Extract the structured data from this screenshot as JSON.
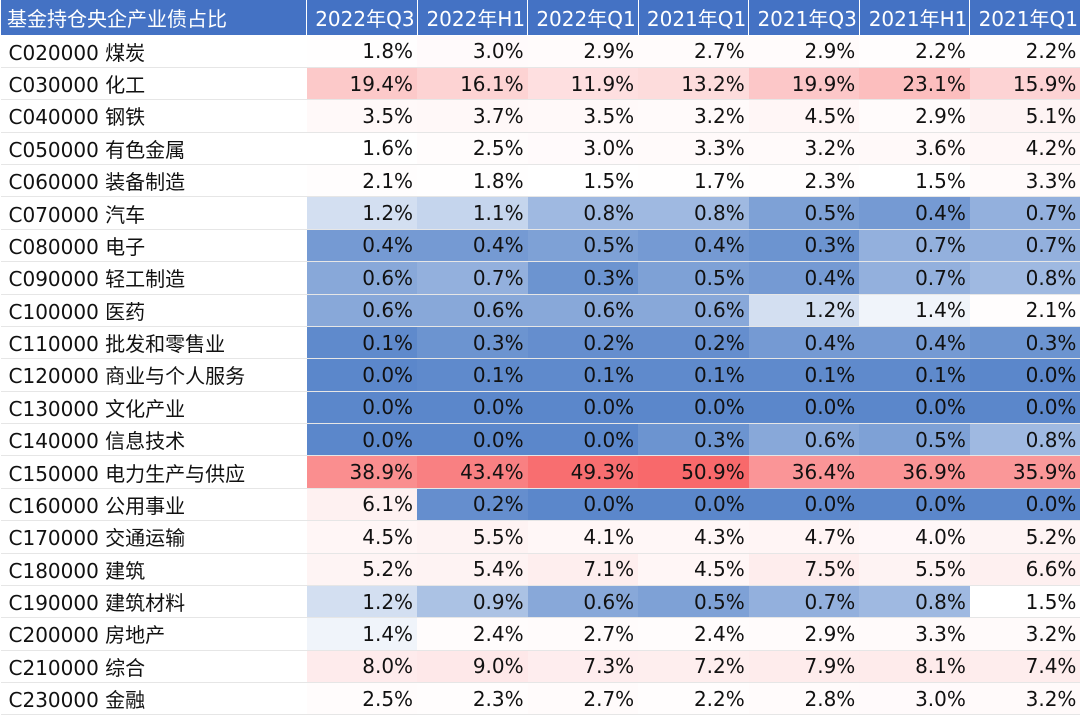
{
  "header": {
    "title": "基金持仓央企产业债占比",
    "periods": [
      "2022年Q3",
      "2022年H1",
      "2022年Q1",
      "2021年Q1",
      "2021年Q3",
      "2021年H1",
      "2021年Q1"
    ]
  },
  "rows": [
    {
      "name": "C020000 煤炭",
      "values": [
        1.8,
        3.0,
        2.9,
        2.7,
        2.9,
        2.2,
        2.2
      ]
    },
    {
      "name": "C030000 化工",
      "values": [
        19.4,
        16.1,
        11.9,
        13.2,
        19.9,
        23.1,
        15.9
      ]
    },
    {
      "name": "C040000 钢铁",
      "values": [
        3.5,
        3.7,
        3.5,
        3.2,
        4.5,
        2.9,
        5.1
      ]
    },
    {
      "name": "C050000 有色金属",
      "values": [
        1.6,
        2.5,
        3.0,
        3.3,
        3.2,
        3.6,
        4.2
      ]
    },
    {
      "name": "C060000 装备制造",
      "values": [
        2.1,
        1.8,
        1.5,
        1.7,
        2.3,
        1.5,
        3.3
      ]
    },
    {
      "name": "C070000 汽车",
      "values": [
        1.2,
        1.1,
        0.8,
        0.8,
        0.5,
        0.4,
        0.7
      ]
    },
    {
      "name": "C080000 电子",
      "values": [
        0.4,
        0.4,
        0.5,
        0.4,
        0.3,
        0.7,
        0.7
      ]
    },
    {
      "name": "C090000 轻工制造",
      "values": [
        0.6,
        0.7,
        0.3,
        0.5,
        0.4,
        0.7,
        0.8
      ]
    },
    {
      "name": "C100000 医药",
      "values": [
        0.6,
        0.6,
        0.6,
        0.6,
        1.2,
        1.4,
        2.1
      ]
    },
    {
      "name": "C110000 批发和零售业",
      "values": [
        0.1,
        0.3,
        0.2,
        0.2,
        0.4,
        0.4,
        0.3
      ]
    },
    {
      "name": "C120000 商业与个人服务",
      "values": [
        0.0,
        0.1,
        0.1,
        0.1,
        0.1,
        0.1,
        0.0
      ]
    },
    {
      "name": "C130000 文化产业",
      "values": [
        0.0,
        0.0,
        0.0,
        0.0,
        0.0,
        0.0,
        0.0
      ]
    },
    {
      "name": "C140000 信息技术",
      "values": [
        0.0,
        0.0,
        0.0,
        0.3,
        0.6,
        0.5,
        0.8
      ]
    },
    {
      "name": "C150000 电力生产与供应",
      "values": [
        38.9,
        43.4,
        49.3,
        50.9,
        36.4,
        36.9,
        35.9
      ]
    },
    {
      "name": "C160000 公用事业",
      "values": [
        6.1,
        0.2,
        0.0,
        0.0,
        0.0,
        0.0,
        0.0
      ]
    },
    {
      "name": "C170000 交通运输",
      "values": [
        4.5,
        5.5,
        4.1,
        4.3,
        4.7,
        4.0,
        5.2
      ]
    },
    {
      "name": "C180000 建筑",
      "values": [
        5.2,
        5.4,
        7.1,
        4.5,
        7.5,
        5.5,
        6.6
      ]
    },
    {
      "name": "C190000 建筑材料",
      "values": [
        1.2,
        0.9,
        0.6,
        0.5,
        0.7,
        0.8,
        1.5
      ]
    },
    {
      "name": "C200000 房地产",
      "values": [
        1.4,
        2.4,
        2.7,
        2.4,
        2.9,
        3.3,
        3.2
      ]
    },
    {
      "name": "C210000 综合",
      "values": [
        8.0,
        9.0,
        7.3,
        7.2,
        7.9,
        8.1,
        7.4
      ]
    },
    {
      "name": "C230000 金融",
      "values": [
        2.5,
        2.3,
        2.7,
        2.2,
        2.8,
        3.0,
        3.2
      ]
    }
  ],
  "color_scale": {
    "low": "#5b87cb",
    "mid": "#ffffff",
    "high": "#f8696b",
    "mid_value": 1.5,
    "max_value": 51
  }
}
